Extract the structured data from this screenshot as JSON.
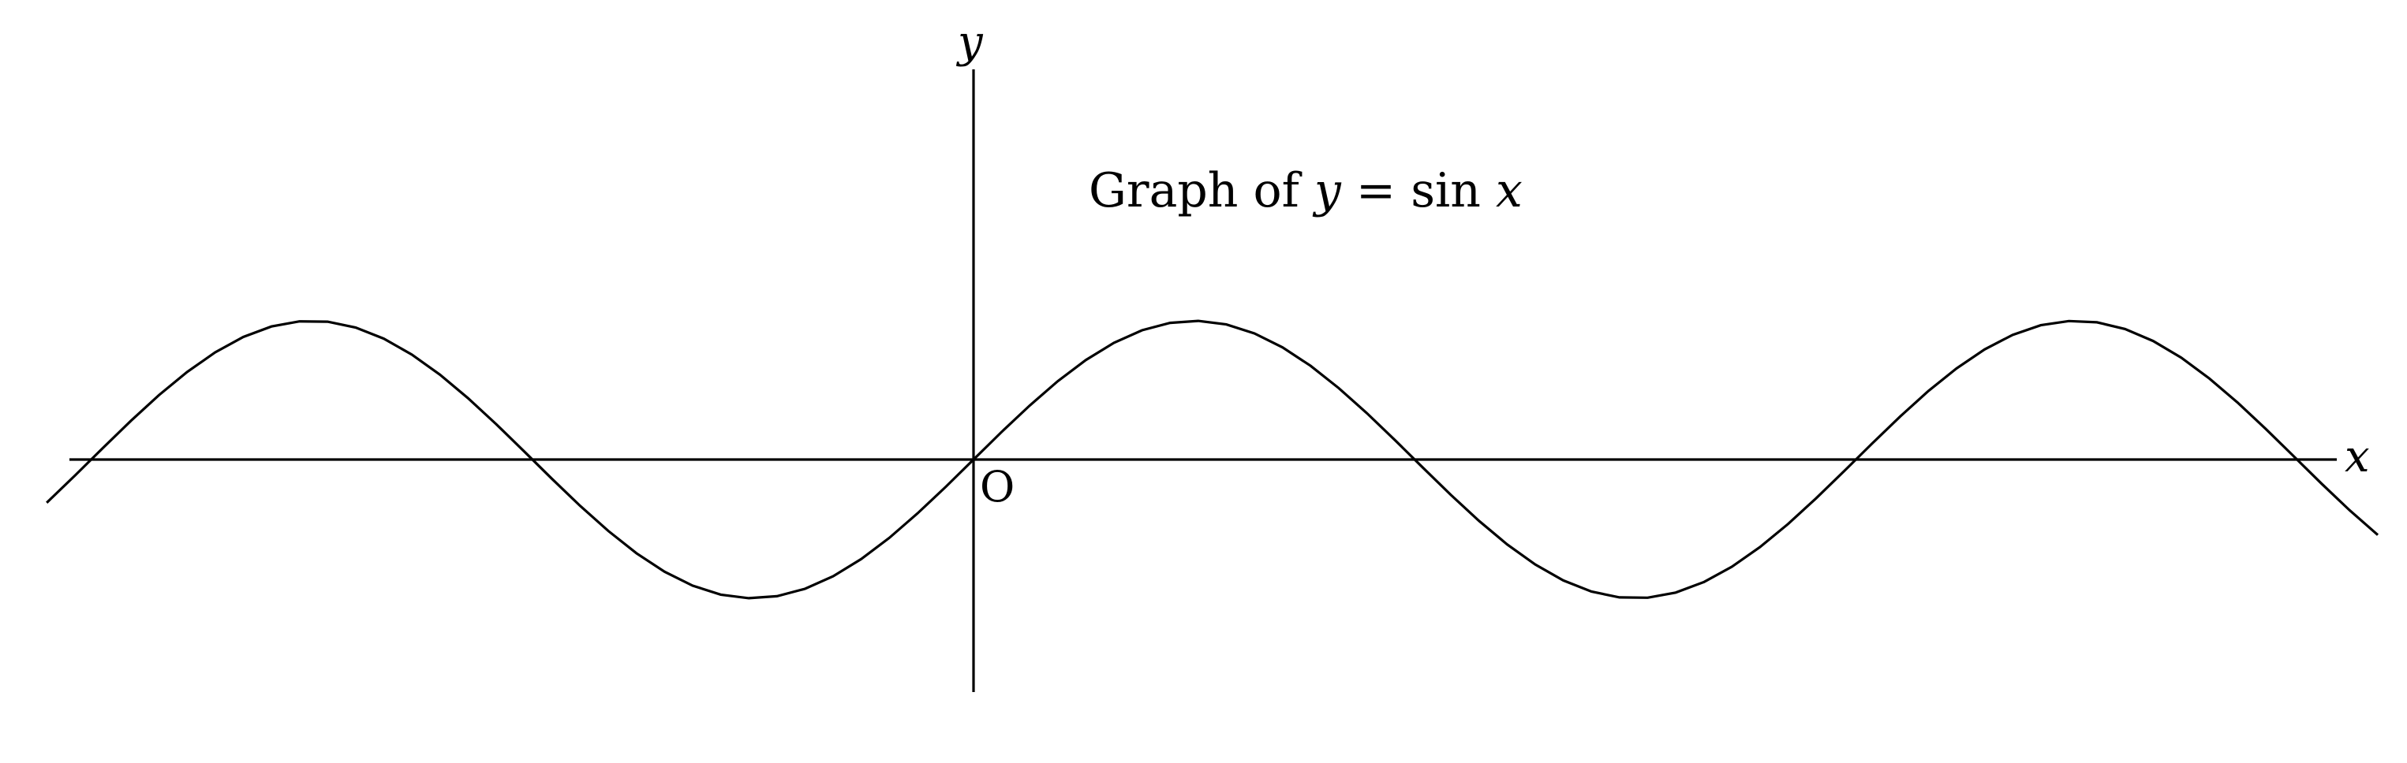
{
  "chart_data": {
    "type": "line",
    "function": "sin",
    "title": {
      "prefix": "Graph of ",
      "var_y": "y",
      "equals": " = sin ",
      "var_x": "x"
    },
    "xlabel": "x",
    "ylabel": "y",
    "origin_label": "O",
    "xlim": [
      -6.6,
      10.0
    ],
    "ylim": [
      -1.0,
      1.0
    ],
    "sample_step": 0.2,
    "grid": false,
    "colors": {
      "line": "#000000",
      "background": "#ffffff"
    }
  }
}
